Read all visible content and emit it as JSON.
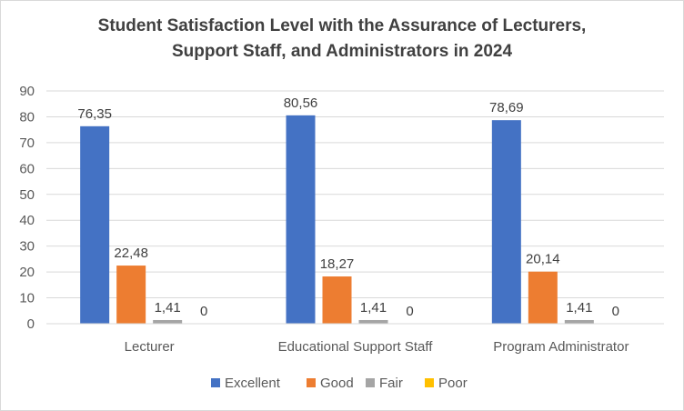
{
  "chart_data": {
    "type": "bar",
    "title_line1": "Student Satisfaction Level with the Assurance of Lecturers,",
    "title_line2": "Support Staff, and Administrators in 2024",
    "categories": [
      "Lecturer",
      "Educational Support Staff",
      "Program Administrator"
    ],
    "series": [
      {
        "name": "Excellent",
        "color": "#4472c4",
        "values": [
          76.35,
          80.56,
          78.69
        ],
        "labels": [
          "76,35",
          "80,56",
          "78,69"
        ]
      },
      {
        "name": "Good",
        "color": "#ed7d31",
        "values": [
          22.48,
          18.27,
          20.14
        ],
        "labels": [
          "22,48",
          "18,27",
          "20,14"
        ]
      },
      {
        "name": "Fair",
        "color": "#a5a5a5",
        "values": [
          1.41,
          1.41,
          1.41
        ],
        "labels": [
          "1,41",
          "1,41",
          "1,41"
        ]
      },
      {
        "name": "Poor",
        "color": "#ffc000",
        "values": [
          0,
          0,
          0
        ],
        "labels": [
          "0",
          "0",
          "0"
        ]
      }
    ],
    "xlabel": "",
    "ylabel": "",
    "ylim": [
      0,
      90
    ],
    "yticks": [
      0,
      10,
      20,
      30,
      40,
      50,
      60,
      70,
      80,
      90
    ],
    "grid": true,
    "legend": "bottom"
  }
}
